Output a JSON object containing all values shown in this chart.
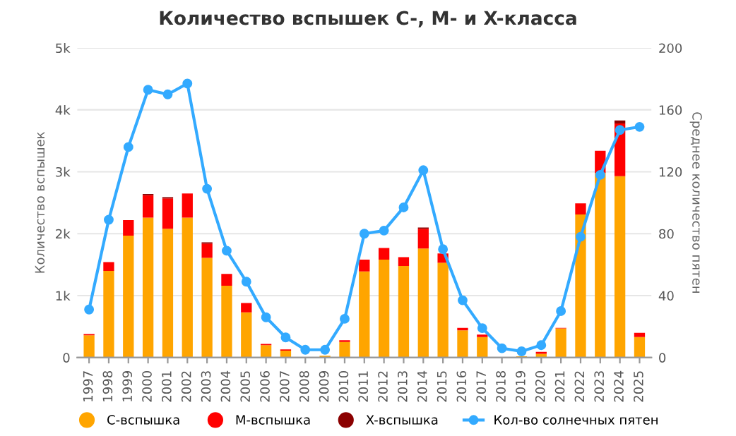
{
  "chart_data": {
    "type": "bar",
    "title": "Количество вспышек C-, M- и X-класса",
    "ylabel": "Количество вспышек",
    "y2label": "Среднее количество пятен",
    "categories": [
      "1997",
      "1998",
      "1999",
      "2000",
      "2001",
      "2002",
      "2003",
      "2004",
      "2005",
      "2006",
      "2007",
      "2008",
      "2009",
      "2010",
      "2011",
      "2012",
      "2013",
      "2014",
      "2015",
      "2016",
      "2017",
      "2018",
      "2019",
      "2020",
      "2021",
      "2022",
      "2023",
      "2024",
      "2025"
    ],
    "stacked": true,
    "series": [
      {
        "name": "C-вспышка",
        "color": "#ffa500",
        "values": [
          360,
          1400,
          1970,
          2260,
          2080,
          2260,
          1610,
          1160,
          730,
          200,
          110,
          null,
          30,
          250,
          1390,
          1580,
          1480,
          1760,
          1530,
          440,
          330,
          null,
          20,
          60,
          470,
          2310,
          2980,
          2930,
          330
        ]
      },
      {
        "name": "M-вспышка",
        "color": "#ff0000",
        "values": [
          20,
          140,
          250,
          360,
          490,
          390,
          230,
          190,
          150,
          20,
          20,
          null,
          null,
          30,
          190,
          190,
          140,
          320,
          150,
          40,
          40,
          null,
          null,
          30,
          10,
          180,
          360,
          850,
          70
        ]
      },
      {
        "name": "X-вспышка",
        "color": "#8b0000",
        "values": [
          null,
          null,
          null,
          20,
          20,
          null,
          20,
          null,
          null,
          null,
          null,
          null,
          null,
          null,
          null,
          null,
          null,
          20,
          null,
          null,
          null,
          null,
          null,
          null,
          null,
          null,
          null,
          50,
          null
        ]
      },
      {
        "name": "Кол-во солнечных пятен",
        "type": "line",
        "axis": "y2",
        "color": "#33aaff",
        "marker": "circle",
        "values": [
          31,
          89,
          136,
          173,
          170,
          177,
          109,
          69,
          49,
          26,
          13,
          5,
          5,
          25,
          80,
          82,
          97,
          121,
          70,
          37,
          19,
          6,
          4,
          8,
          30,
          78,
          118,
          147,
          149
        ]
      }
    ],
    "ylim": [
      0,
      5000
    ],
    "yticks": [
      0,
      {
        "value": 1000,
        "label": "1k"
      },
      {
        "value": 2000,
        "label": "2k"
      },
      {
        "value": 3000,
        "label": "3k"
      },
      {
        "value": 4000,
        "label": "4k"
      },
      {
        "value": 5000,
        "label": "5k"
      }
    ],
    "y2lim": [
      0,
      200
    ],
    "y2ticks": [
      0,
      40,
      80,
      120,
      160,
      200
    ],
    "grid": "y",
    "legend": "bottom"
  }
}
